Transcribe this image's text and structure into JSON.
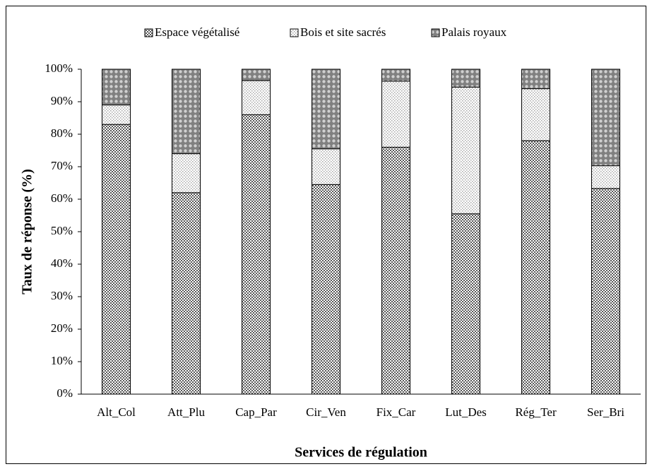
{
  "chart_data": {
    "type": "stacked_bar_percent",
    "x_label": "Services de régulation",
    "y_label": "Taux de réponse (%)",
    "categories": [
      "Alt_Col",
      "Att_Plu",
      "Cap_Par",
      "Cir_Ven",
      "Fix_Car",
      "Lut_Des",
      "Rég_Ter",
      "Ser_Bri"
    ],
    "series": [
      {
        "name": "Espace végétalisé",
        "color": "#595959",
        "values": [
          83,
          62,
          86,
          64.5,
          76,
          55.5,
          78,
          63.3
        ]
      },
      {
        "name": "Bois et site sacrés",
        "color": "#a6a6a6",
        "values": [
          6,
          12,
          10.5,
          11,
          20.3,
          39,
          16,
          7
        ]
      },
      {
        "name": "Palais royaux",
        "color": "#808080",
        "values": [
          11,
          26,
          3.5,
          24.5,
          3.7,
          5.5,
          6,
          29.7
        ]
      }
    ],
    "ylim": [
      0,
      100
    ],
    "yticks": [
      {
        "value": 0,
        "label": "0%"
      },
      {
        "value": 10,
        "label": "10%"
      },
      {
        "value": 20,
        "label": "20%"
      },
      {
        "value": 30,
        "label": "30%"
      },
      {
        "value": 40,
        "label": "40%"
      },
      {
        "value": 50,
        "label": "50%"
      },
      {
        "value": 60,
        "label": "60%"
      },
      {
        "value": 70,
        "label": "70%"
      },
      {
        "value": 80,
        "label": "80%"
      },
      {
        "value": 90,
        "label": "90%"
      },
      {
        "value": 100,
        "label": "100%"
      }
    ],
    "legend": "top"
  }
}
